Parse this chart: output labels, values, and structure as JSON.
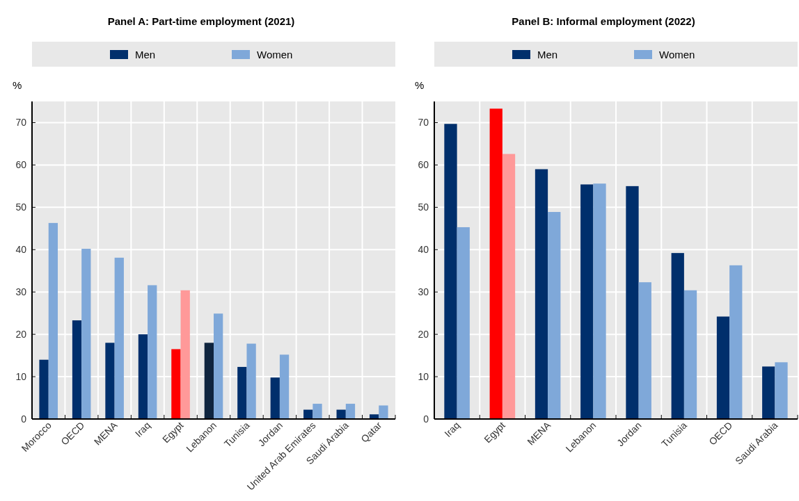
{
  "chart_data": [
    {
      "type": "bar",
      "title": "Panel A: Part-time employment (2021)",
      "ylabel": "%",
      "categories": [
        "Morocco",
        "OECD",
        "MENA",
        "Iraq",
        "Egypt",
        "Lebanon",
        "Tunisia",
        "Jordan",
        "United Arab Emirates",
        "Saudi Arabia",
        "Qatar"
      ],
      "series": [
        {
          "name": "Men",
          "color": "#002f6c",
          "colors": [
            "#002f6c",
            "#002f6c",
            "#002f6c",
            "#002f6c",
            "#ff0000",
            "#0f243e",
            "#002f6c",
            "#002f6c",
            "#002f6c",
            "#002f6c",
            "#002f6c"
          ],
          "values": [
            14,
            23.3,
            18,
            20,
            16.5,
            18,
            12.3,
            9.8,
            2.2,
            2.2,
            1.1
          ]
        },
        {
          "name": "Women",
          "color": "#7fa8d9",
          "colors": [
            "#7fa8d9",
            "#7fa8d9",
            "#7fa8d9",
            "#7fa8d9",
            "#ff9999",
            "#7fa8d9",
            "#7fa8d9",
            "#7fa8d9",
            "#7fa8d9",
            "#7fa8d9",
            "#7fa8d9"
          ],
          "values": [
            46.3,
            40.2,
            38.1,
            31.6,
            30.4,
            24.9,
            17.8,
            15.2,
            3.6,
            3.6,
            3.2
          ]
        }
      ],
      "ylim": [
        0,
        75
      ],
      "yticks": [
        0,
        10,
        20,
        30,
        40,
        50,
        60,
        70
      ],
      "grid": true,
      "legend": "top"
    },
    {
      "type": "bar",
      "title": "Panel B: Informal employment (2022)",
      "ylabel": "%",
      "categories": [
        "Iraq",
        "Egypt",
        "MENA",
        "Lebanon",
        "Jordan",
        "Tunisia",
        "OECD",
        "Saudi Arabia"
      ],
      "series": [
        {
          "name": "Men",
          "color": "#002f6c",
          "colors": [
            "#002f6c",
            "#ff0000",
            "#002f6c",
            "#002f6c",
            "#002f6c",
            "#002f6c",
            "#002f6c",
            "#002f6c"
          ],
          "values": [
            69.7,
            73.3,
            59,
            55.4,
            55,
            39.2,
            24.2,
            12.4
          ]
        },
        {
          "name": "Women",
          "color": "#7fa8d9",
          "colors": [
            "#7fa8d9",
            "#ff9999",
            "#7fa8d9",
            "#7fa8d9",
            "#7fa8d9",
            "#7fa8d9",
            "#7fa8d9",
            "#7fa8d9"
          ],
          "values": [
            45.3,
            62.6,
            48.9,
            55.6,
            32.3,
            30.4,
            36.3,
            13.4
          ]
        }
      ],
      "ylim": [
        0,
        75
      ],
      "yticks": [
        0,
        10,
        20,
        30,
        40,
        50,
        60,
        70
      ],
      "grid": true,
      "legend": "top"
    }
  ]
}
